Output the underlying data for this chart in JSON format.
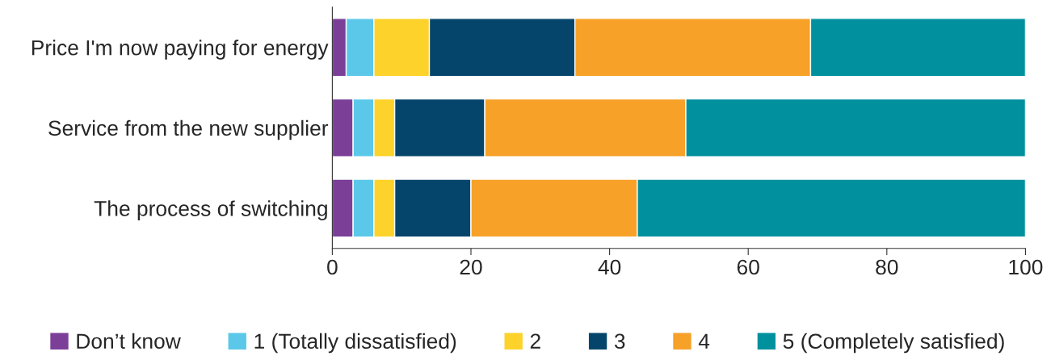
{
  "chart_data": {
    "type": "bar",
    "orientation": "horizontal",
    "stacked": true,
    "categories": [
      "Price I'm now paying for energy",
      "Service from the new supplier",
      "The process of switching"
    ],
    "series": [
      {
        "name": "Don’t know",
        "color": "#7b3f98",
        "values": [
          2,
          3,
          3
        ]
      },
      {
        "name": "1 (Totally dissatisfied)",
        "color": "#5bc8ea",
        "values": [
          4,
          3,
          3
        ]
      },
      {
        "name": "2",
        "color": "#fdd22a",
        "values": [
          8,
          3,
          3
        ]
      },
      {
        "name": "3",
        "color": "#05456b",
        "values": [
          21,
          13,
          11
        ]
      },
      {
        "name": "4",
        "color": "#f7a128",
        "values": [
          34,
          29,
          24
        ]
      },
      {
        "name": "5 (Completely satisfied)",
        "color": "#00909e",
        "values": [
          31,
          49,
          56
        ]
      }
    ],
    "xlim": [
      0,
      100
    ],
    "xticks": [
      0,
      20,
      40,
      60,
      80,
      100
    ],
    "grid": false,
    "legend": "bottom"
  }
}
